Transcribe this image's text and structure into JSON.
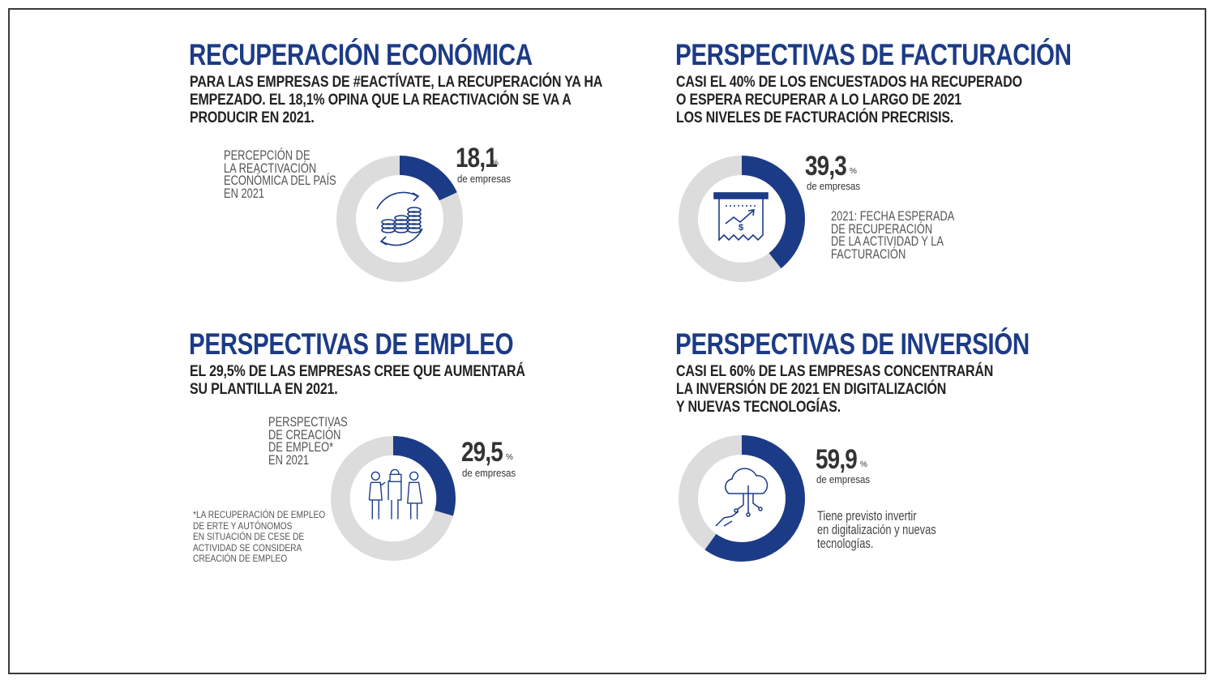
{
  "panels": {
    "economica": {
      "title": "RECUPERACIÓN ECONÓMICA",
      "desc": [
        "PARA LAS EMPRESAS DE #EACTÍVATE, LA RECUPERACIÓN YA HA",
        "EMPEZADO. EL 18,1% OPINA QUE LA REACTIVACIÓN SE VA A",
        "PRODUCIR EN 2021."
      ],
      "label": [
        "PERCEPCIÓN DE",
        "LA REACTIVACIÓN",
        "ECONÓMICA DEL PAÍS",
        "EN 2021"
      ],
      "value_text": "18,1",
      "unit": "%",
      "sub": "de empresas",
      "icon": "coins-cycle-icon"
    },
    "facturacion": {
      "title": "PERSPECTIVAS DE FACTURACIÓN",
      "desc": [
        "CASI EL 40% DE LOS ENCUESTADOS HA RECUPERADO",
        "O ESPERA RECUPERAR A LO LARGO DE 2021",
        "LOS NIVELES DE FACTURACIÓN PRECRISIS."
      ],
      "label": [
        "2021: FECHA ESPERADA",
        "DE RECUPERACIÓN",
        "DE LA ACTIVIDAD Y LA",
        "FACTURACIÓN"
      ],
      "value_text": "39,3",
      "unit": "%",
      "sub": "de empresas",
      "icon": "invoice-chart-icon"
    },
    "empleo": {
      "title": "PERSPECTIVAS DE EMPLEO",
      "desc": [
        "EL 29,5% DE LAS EMPRESAS CREE QUE AUMENTARÁ",
        "SU PLANTILLA EN 2021."
      ],
      "label": [
        "PERSPECTIVAS",
        "DE CREACIÓN",
        "DE EMPLEO*",
        "EN 2021"
      ],
      "value_text": "29,5",
      "unit": "%",
      "sub": "de empresas",
      "footnote": [
        "*LA RECUPERACIÓN DE EMPLEO",
        "DE ERTE Y AUTÓNOMOS",
        "EN SITUACIÓN DE CESE DE",
        "ACTIVIDAD SE CONSIDERA",
        "CREACIÓN DE EMPLEO"
      ],
      "icon": "people-icon"
    },
    "inversion": {
      "title": "PERSPECTIVAS DE INVERSIÓN",
      "desc": [
        "CASI EL 60% DE LAS EMPRESAS CONCENTRARÁN",
        "LA INVERSIÓN DE 2021 EN DIGITALIZACIÓN",
        "Y NUEVAS TECNOLOGÍAS."
      ],
      "label": [
        "Tiene previsto invertir",
        "en digitalización y nuevas",
        "tecnologías."
      ],
      "value_text": "59,9",
      "unit": "%",
      "sub": "de empresas",
      "icon": "cloud-hand-icon"
    }
  },
  "chart_data": [
    {
      "type": "pie",
      "categories": [
        "de empresas",
        ""
      ],
      "values": [
        18.1,
        81.9
      ],
      "colors": [
        "#1c3b87",
        "#dcdcdc"
      ]
    },
    {
      "type": "pie",
      "categories": [
        "de empresas",
        ""
      ],
      "values": [
        39.3,
        60.7
      ],
      "colors": [
        "#1c3b87",
        "#dcdcdc"
      ]
    },
    {
      "type": "pie",
      "categories": [
        "de empresas",
        ""
      ],
      "values": [
        29.5,
        70.5
      ],
      "colors": [
        "#1c3b87",
        "#dcdcdc"
      ]
    },
    {
      "type": "pie",
      "categories": [
        "de empresas",
        ""
      ],
      "values": [
        59.9,
        40.1
      ],
      "colors": [
        "#1c3b87",
        "#dcdcdc"
      ]
    }
  ],
  "colors": {
    "accent": "#1c3b87",
    "track": "#dcdcdc",
    "text": "#222222"
  }
}
